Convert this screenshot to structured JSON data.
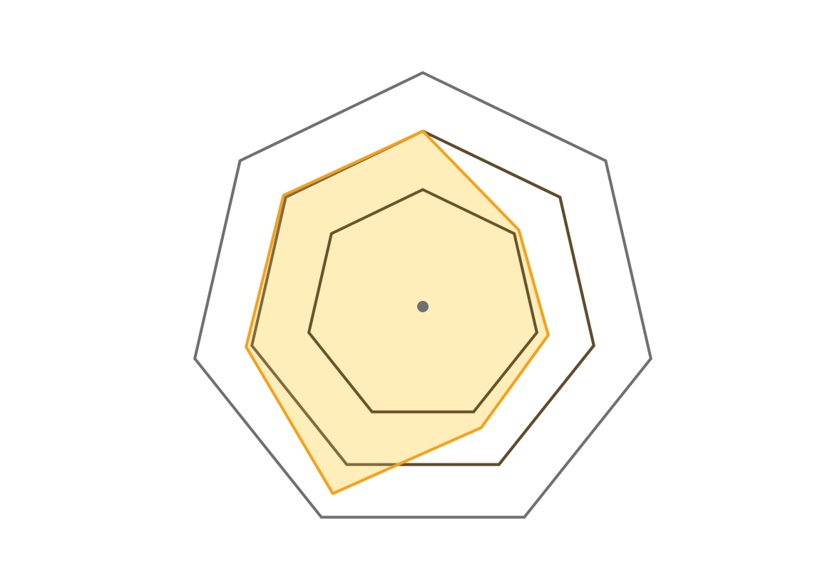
{
  "chart_data": {
    "type": "radar",
    "axes_count": 7,
    "axis_labels": [],
    "range": [
      0,
      4
    ],
    "grid_levels": [
      2,
      3,
      4
    ],
    "series": [
      {
        "values": [
          3,
          2.1,
          2.2,
          2.3,
          3.55,
          3.1,
          3.05
        ],
        "fill_color": "#FFEDBA",
        "stroke_color": "#F5A11B"
      }
    ],
    "colors": {
      "outer_grid": "#707070",
      "middle_grid": "#25223A",
      "inner_grid": "#6A5329",
      "center_dot": "#707070"
    }
  }
}
